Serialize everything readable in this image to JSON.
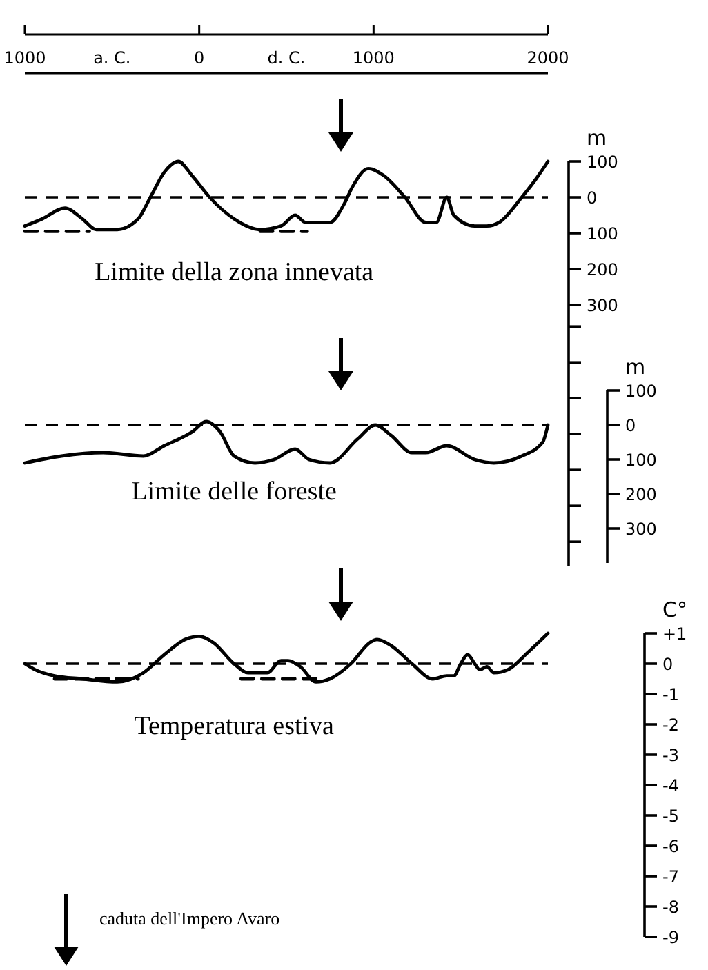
{
  "chart_data": [
    {
      "type": "line",
      "title": "Limite della zona innevata",
      "ylabel": "m",
      "xlim": [
        -1000,
        2000
      ],
      "xticks": [
        {
          "value": -1000,
          "label": "1000"
        },
        0,
        1000,
        2000
      ],
      "ylim": [
        -300,
        100
      ],
      "yticks": [
        100,
        0,
        {
          "value": -100,
          "label": "100"
        },
        {
          "value": -200,
          "label": "200"
        },
        {
          "value": -300,
          "label": "300"
        }
      ],
      "annotations": [
        "a. C.",
        "d. C."
      ],
      "ref_lines": [
        {
          "axis": "y",
          "value": 0,
          "line_style": "dashed"
        }
      ],
      "series": [
        {
          "color": "#000000",
          "line_style": "solid",
          "x": [
            -1000,
            -900,
            -770,
            -670,
            -590,
            -470,
            -350,
            -280,
            -200,
            -120,
            -40,
            60,
            200,
            350,
            470,
            550,
            610,
            750,
            830,
            880,
            970,
            1060,
            1180,
            1300,
            1360,
            1420,
            1460,
            1580,
            1650,
            1720,
            1850,
            1930,
            2000
          ],
          "values": [
            -80,
            -60,
            -30,
            -60,
            -90,
            -90,
            -60,
            0,
            70,
            100,
            60,
            0,
            -60,
            -90,
            -80,
            -50,
            -70,
            -70,
            -20,
            30,
            80,
            60,
            0,
            -70,
            -70,
            0,
            -50,
            -80,
            -80,
            -70,
            0,
            50,
            100
          ]
        },
        {
          "color": "#000000",
          "line_style": "dashed",
          "x": [
            -1000,
            -630,
            null,
            350,
            620
          ],
          "values": [
            -95,
            -95,
            null,
            -95,
            -95
          ]
        }
      ]
    },
    {
      "type": "line",
      "title": "Limite delle foreste",
      "ylabel": "m",
      "xlim": [
        -1000,
        2000
      ],
      "ylim": [
        -400,
        100
      ],
      "yticks": [
        100,
        0,
        {
          "value": -100,
          "label": "100"
        },
        {
          "value": -200,
          "label": "200"
        },
        {
          "value": -300,
          "label": "300"
        }
      ],
      "tick_labels": "y",
      "ref_lines": [
        {
          "axis": "y",
          "value": 0,
          "line_style": "dashed"
        }
      ],
      "series": [
        {
          "color": "#000000",
          "line_style": "solid",
          "x": [
            -1000,
            -790,
            -550,
            -320,
            -200,
            -40,
            40,
            120,
            200,
            320,
            430,
            550,
            630,
            750,
            910,
            1010,
            1100,
            1220,
            1300,
            1420,
            1580,
            1690,
            1850,
            1970,
            2000
          ],
          "values": [
            -110,
            -90,
            -80,
            -90,
            -60,
            -20,
            10,
            -20,
            -90,
            -110,
            -100,
            -70,
            -100,
            -110,
            -40,
            0,
            -30,
            -80,
            -80,
            -60,
            -100,
            -110,
            -90,
            -50,
            0
          ]
        }
      ]
    },
    {
      "type": "line",
      "title": "Temperatura estiva",
      "ylabel": "C°",
      "xlim": [
        -1000,
        2000
      ],
      "ylim": [
        -9,
        1
      ],
      "yticks": [
        {
          "value": 1,
          "label": "+1"
        },
        0,
        -1,
        -2,
        -3,
        -4,
        -5,
        -6,
        -7,
        -8,
        -9
      ],
      "tick_labels": "y",
      "annotations": [
        "caduta dell'Impero Avaro"
      ],
      "ref_lines": [
        {
          "axis": "y",
          "value": 0,
          "line_style": "dashed"
        }
      ],
      "series": [
        {
          "color": "#000000",
          "line_style": "solid",
          "x": [
            -1000,
            -940,
            -830,
            -670,
            -470,
            -320,
            -200,
            -80,
            0,
            80,
            200,
            280,
            390,
            470,
            510,
            580,
            670,
            750,
            870,
            980,
            1020,
            1100,
            1220,
            1340,
            1420,
            1460,
            1500,
            1540,
            1580,
            1610,
            1650,
            1690,
            1770,
            1890,
            2000
          ],
          "values": [
            0,
            -0.2,
            -0.4,
            -0.5,
            -0.6,
            -0.3,
            0.3,
            0.8,
            0.9,
            0.7,
            0,
            -0.3,
            -0.3,
            0.1,
            0.1,
            -0.1,
            -0.6,
            -0.5,
            0,
            0.7,
            0.8,
            0.6,
            0,
            -0.5,
            -0.4,
            -0.4,
            0,
            0.3,
            0,
            -0.2,
            -0.1,
            -0.3,
            -0.2,
            0.4,
            1
          ]
        },
        {
          "color": "#000000",
          "line_style": "dashed",
          "x": [
            -830,
            -350,
            null,
            240,
            670
          ],
          "values": [
            -0.5,
            -0.5,
            null,
            -0.5,
            -0.5
          ]
        }
      ]
    }
  ]
}
